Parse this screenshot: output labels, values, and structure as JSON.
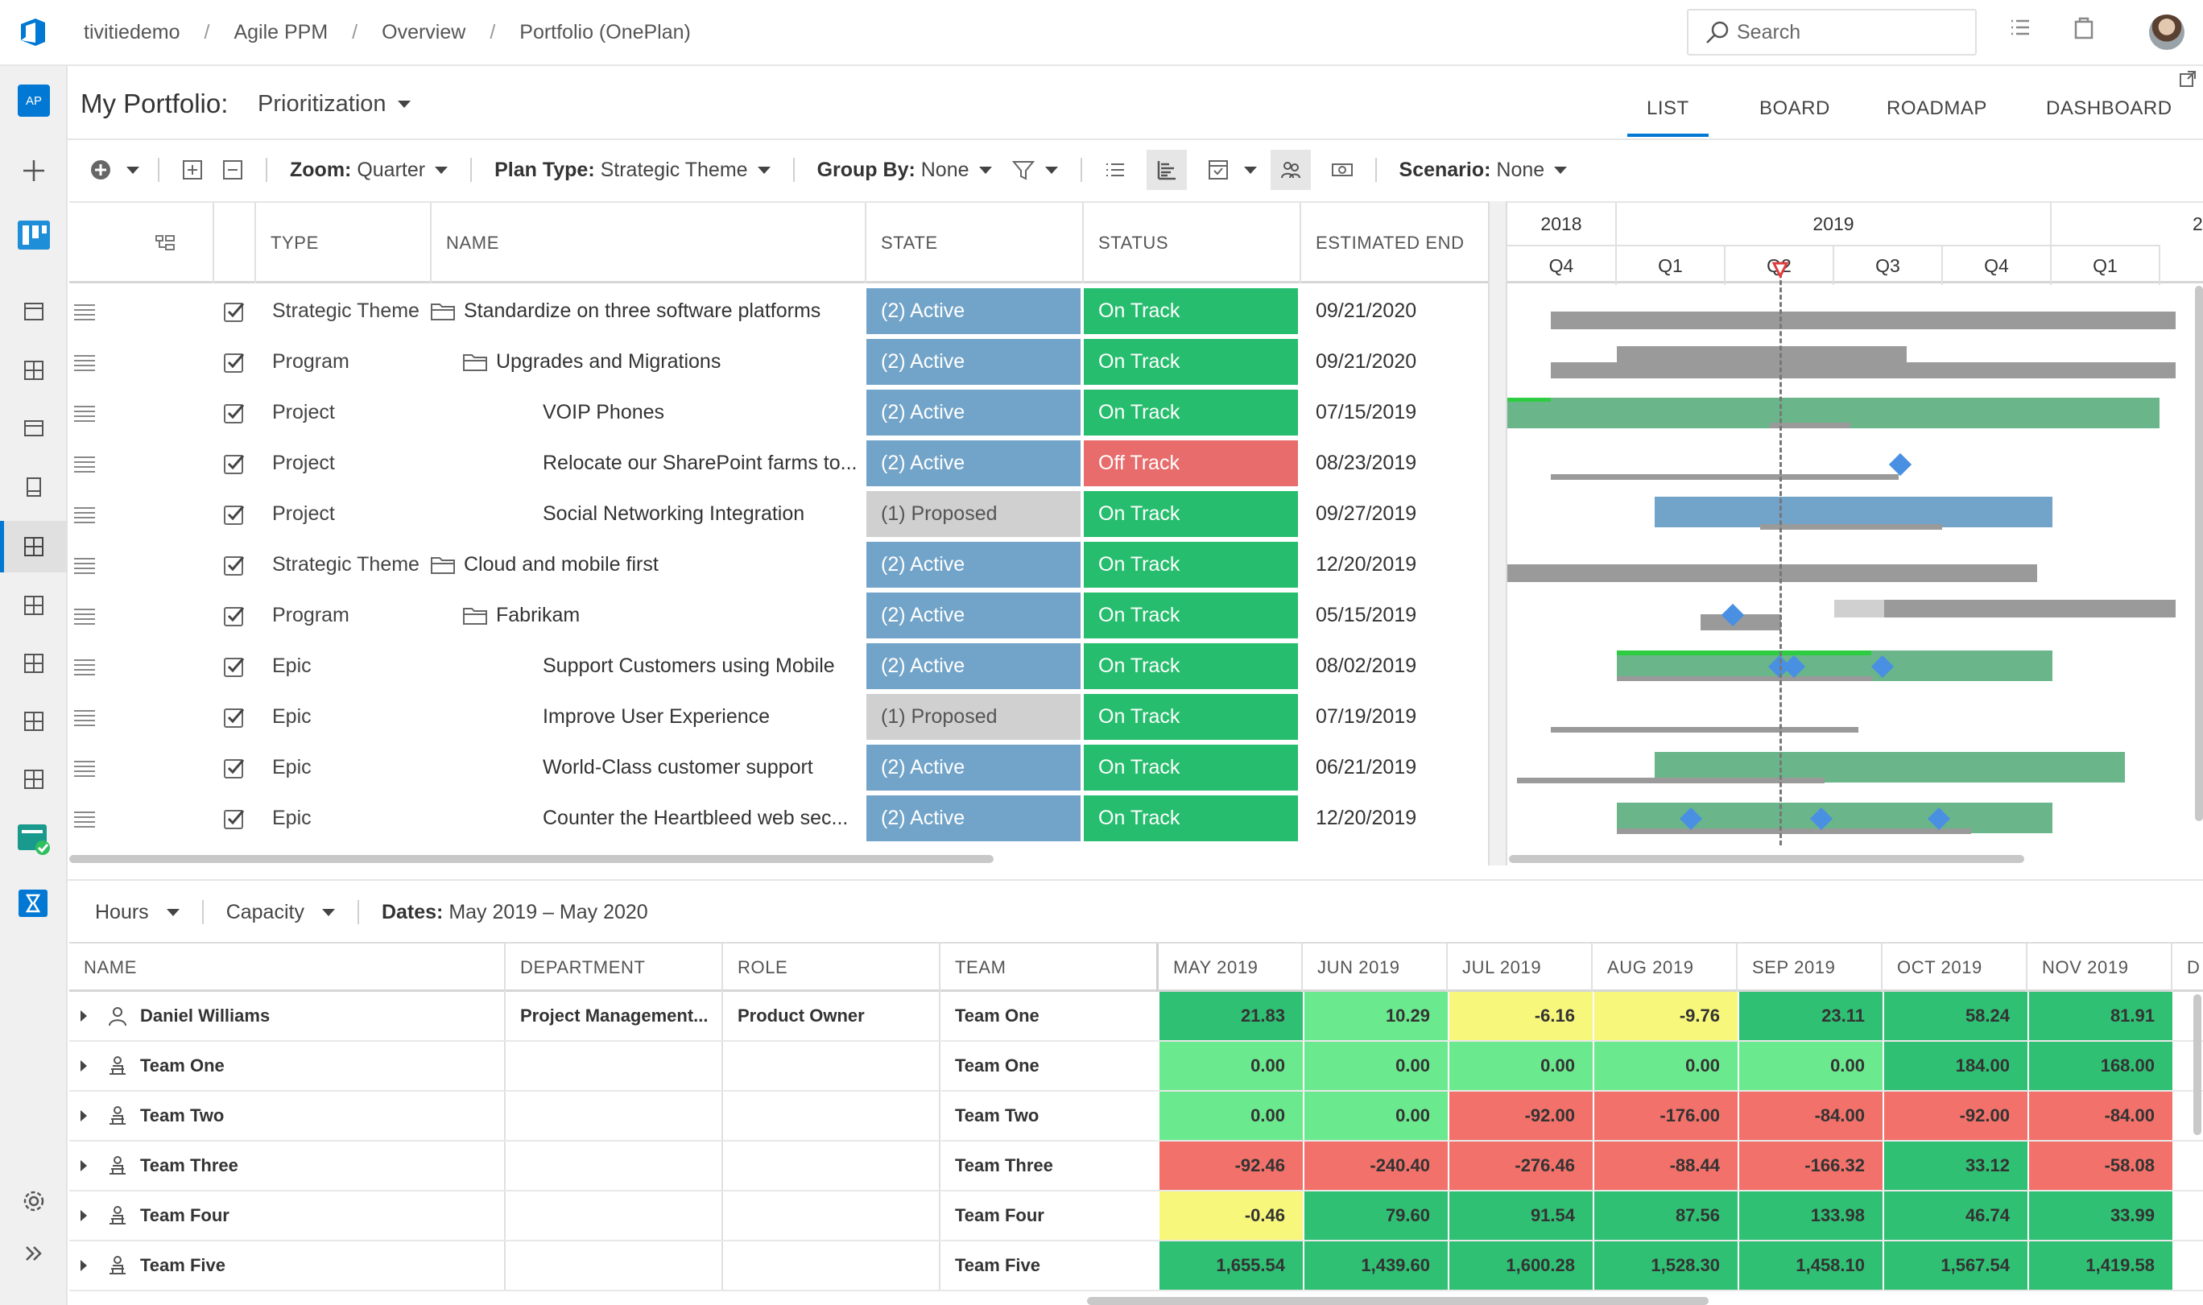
{
  "breadcrumbs": [
    "tivitiedemo",
    "Agile PPM",
    "Overview",
    "Portfolio (OnePlan)"
  ],
  "search": {
    "placeholder": "Search"
  },
  "rail": {
    "project_badge": "AP"
  },
  "page": {
    "title": "My Portfolio:",
    "view": "Prioritization"
  },
  "tabs": [
    "LIST",
    "BOARD",
    "ROADMAP",
    "DASHBOARD"
  ],
  "toolbar": {
    "zoom_label": "Zoom:",
    "zoom_value": "Quarter",
    "plan_type_label": "Plan Type:",
    "plan_type_value": "Strategic Theme",
    "group_by_label": "Group By:",
    "group_by_value": "None",
    "scenario_label": "Scenario:",
    "scenario_value": "None"
  },
  "colors": {
    "active": "#72a4c9",
    "proposed": "#d0d0d0",
    "on_track": "#27bd6e",
    "off_track": "#e86c6c",
    "accent": "#0078d4"
  },
  "grid": {
    "headers": [
      "TYPE",
      "NAME",
      "STATE",
      "STATUS",
      "ESTIMATED END"
    ],
    "rows": [
      {
        "type": "Strategic Theme",
        "name": "Standardize on three software platforms",
        "level": 0,
        "folder": true,
        "state": "(2) Active",
        "status": "On Track",
        "end": "09/21/2020"
      },
      {
        "type": "Program",
        "name": "Upgrades and Migrations",
        "level": 1,
        "folder": true,
        "state": "(2) Active",
        "status": "On Track",
        "end": "09/21/2020"
      },
      {
        "type": "Project",
        "name": "VOIP Phones",
        "level": 2,
        "folder": false,
        "state": "(2) Active",
        "status": "On Track",
        "end": "07/15/2019"
      },
      {
        "type": "Project",
        "name": "Relocate our SharePoint farms to...",
        "level": 2,
        "folder": false,
        "state": "(2) Active",
        "status": "Off Track",
        "end": "08/23/2019"
      },
      {
        "type": "Project",
        "name": "Social Networking Integration",
        "level": 2,
        "folder": false,
        "state": "(1) Proposed",
        "status": "On Track",
        "end": "09/27/2019"
      },
      {
        "type": "Strategic Theme",
        "name": "Cloud and mobile first",
        "level": 0,
        "folder": true,
        "state": "(2) Active",
        "status": "On Track",
        "end": "12/20/2019"
      },
      {
        "type": "Program",
        "name": "Fabrikam",
        "level": 1,
        "folder": true,
        "state": "(2) Active",
        "status": "On Track",
        "end": "05/15/2019"
      },
      {
        "type": "Epic",
        "name": "Support Customers using Mobile",
        "level": 2,
        "folder": false,
        "state": "(2) Active",
        "status": "On Track",
        "end": "08/02/2019"
      },
      {
        "type": "Epic",
        "name": "Improve User Experience",
        "level": 2,
        "folder": false,
        "state": "(1) Proposed",
        "status": "On Track",
        "end": "07/19/2019"
      },
      {
        "type": "Epic",
        "name": "World-Class customer support",
        "level": 2,
        "folder": false,
        "state": "(2) Active",
        "status": "On Track",
        "end": "06/21/2019"
      },
      {
        "type": "Epic",
        "name": "Counter the Heartbleed web sec...",
        "level": 2,
        "folder": false,
        "state": "(2) Active",
        "status": "On Track",
        "end": "12/20/2019"
      }
    ]
  },
  "gantt": {
    "years": [
      "2018",
      "2019",
      "2"
    ],
    "quarters": [
      "Q4",
      "Q1",
      "Q2",
      "Q3",
      "Q4",
      "Q1"
    ]
  },
  "bottom": {
    "measure": "Hours",
    "mode": "Capacity",
    "dates_label": "Dates:",
    "dates_value": "May 2019 – May 2020"
  },
  "resources": {
    "headers": [
      "NAME",
      "DEPARTMENT",
      "ROLE",
      "TEAM"
    ],
    "months": [
      "MAY 2019",
      "JUN 2019",
      "JUL 2019",
      "AUG 2019",
      "SEP 2019",
      "OCT 2019",
      "NOV 2019",
      "D"
    ],
    "rows": [
      {
        "name": "Daniel Williams",
        "kind": "person",
        "department": "Project Management...",
        "role": "Product Owner",
        "team": "Team One",
        "values": [
          "21.83",
          "10.29",
          "-6.16",
          "-9.76",
          "23.11",
          "58.24",
          "81.91"
        ],
        "colors": [
          "#2fc074",
          "#6be98e",
          "#f7f77c",
          "#f7f77c",
          "#2fc074",
          "#2fc074",
          "#2fc074"
        ]
      },
      {
        "name": "Team One",
        "kind": "team",
        "department": "",
        "role": "",
        "team": "Team One",
        "values": [
          "0.00",
          "0.00",
          "0.00",
          "0.00",
          "0.00",
          "184.00",
          "168.00"
        ],
        "colors": [
          "#6be98e",
          "#6be98e",
          "#6be98e",
          "#6be98e",
          "#6be98e",
          "#2fc074",
          "#2fc074"
        ]
      },
      {
        "name": "Team Two",
        "kind": "team",
        "department": "",
        "role": "",
        "team": "Team Two",
        "values": [
          "0.00",
          "0.00",
          "-92.00",
          "-176.00",
          "-84.00",
          "-92.00",
          "-84.00"
        ],
        "colors": [
          "#6be98e",
          "#6be98e",
          "#f2716a",
          "#f2716a",
          "#f2716a",
          "#f2716a",
          "#f2716a"
        ]
      },
      {
        "name": "Team Three",
        "kind": "team",
        "department": "",
        "role": "",
        "team": "Team Three",
        "values": [
          "-92.46",
          "-240.40",
          "-276.46",
          "-88.44",
          "-166.32",
          "33.12",
          "-58.08"
        ],
        "colors": [
          "#f2716a",
          "#f2716a",
          "#f2716a",
          "#f2716a",
          "#f2716a",
          "#2fc074",
          "#f2716a"
        ]
      },
      {
        "name": "Team Four",
        "kind": "team",
        "department": "",
        "role": "",
        "team": "Team Four",
        "values": [
          "-0.46",
          "79.60",
          "91.54",
          "87.56",
          "133.98",
          "46.74",
          "33.99"
        ],
        "colors": [
          "#f7f77c",
          "#2fc074",
          "#2fc074",
          "#2fc074",
          "#2fc074",
          "#2fc074",
          "#2fc074"
        ]
      },
      {
        "name": "Team Five",
        "kind": "team",
        "department": "",
        "role": "",
        "team": "Team Five",
        "values": [
          "1,655.54",
          "1,439.60",
          "1,600.28",
          "1,528.30",
          "1,458.10",
          "1,567.54",
          "1,419.58"
        ],
        "colors": [
          "#2fc074",
          "#2fc074",
          "#2fc074",
          "#2fc074",
          "#2fc074",
          "#2fc074",
          "#2fc074"
        ]
      }
    ]
  }
}
